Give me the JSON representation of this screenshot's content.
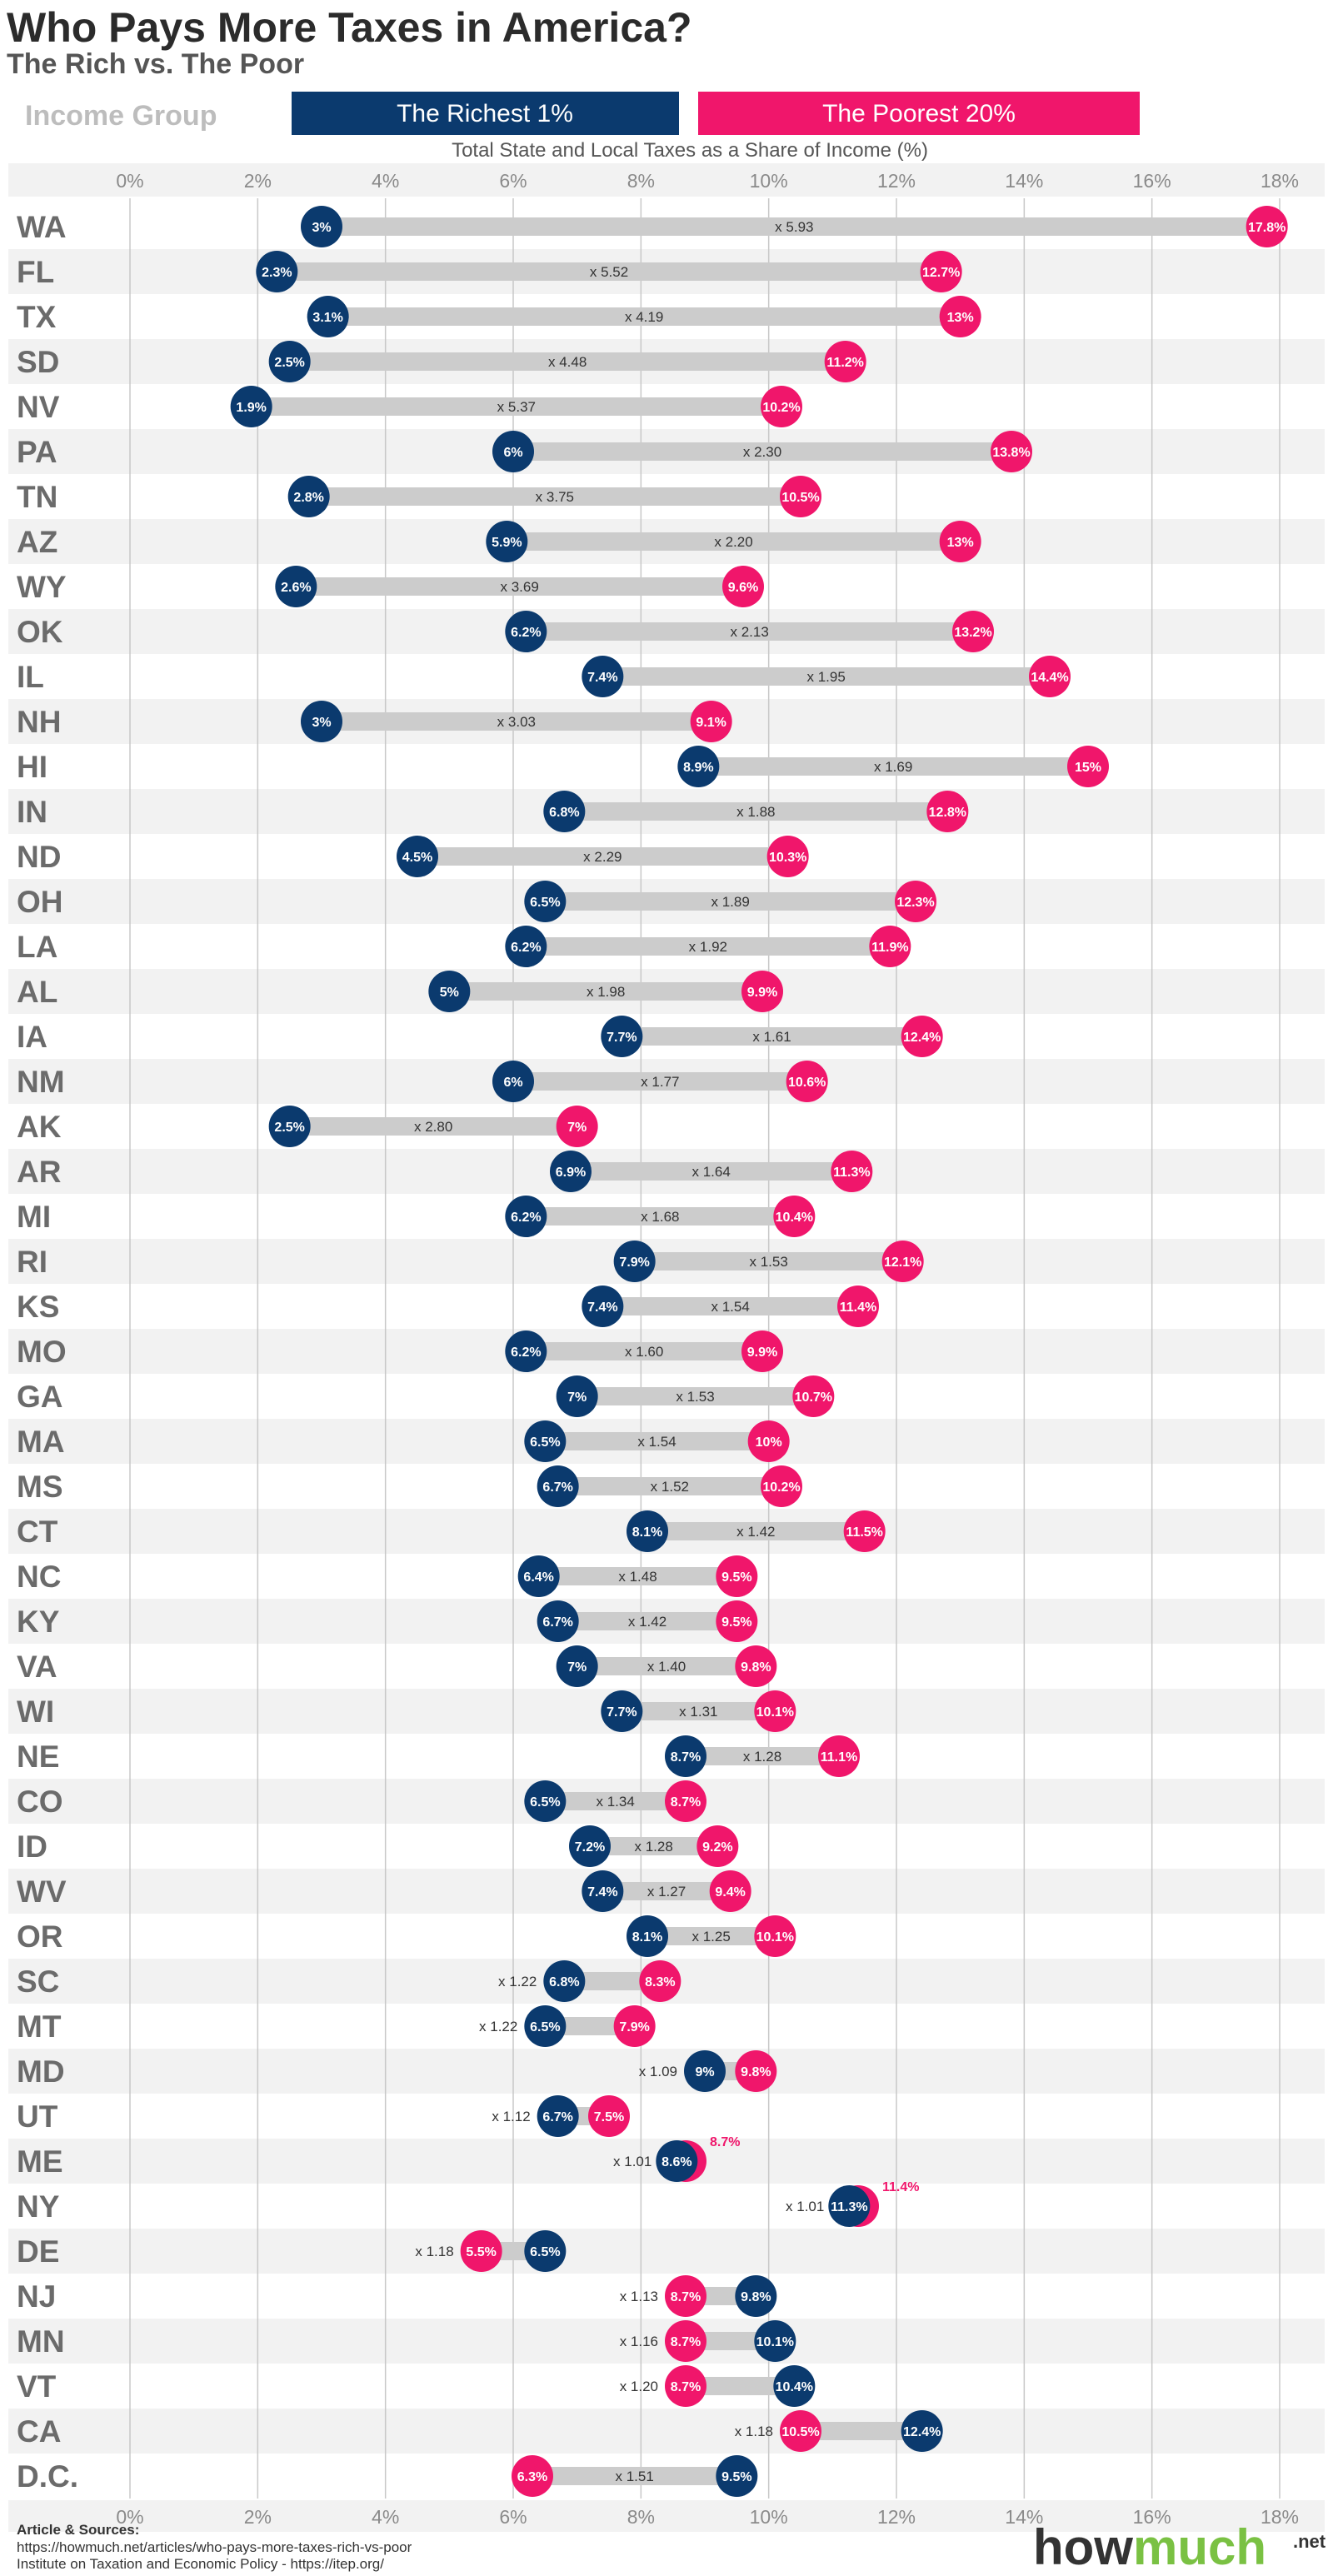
{
  "header": {
    "title": "Who Pays More Taxes in America?",
    "subtitle": "The Rich vs. The Poor",
    "legend_label": "Income Group",
    "legend_rich": "The Richest 1%",
    "legend_poor": "The Poorest 20%",
    "axis_title": "Total State and Local Taxes as a Share of Income (%)"
  },
  "colors": {
    "rich": "#0b3a6e",
    "poor": "#f0166b",
    "bar": "#cccccc",
    "stripe": "#f2f2f2",
    "state_label": "#6b6b6b",
    "grid": "#c8c8c8",
    "brand_how": "#333333",
    "brand_much": "#7ac143"
  },
  "chart_data": {
    "type": "dumbbell",
    "xlim": [
      0,
      18
    ],
    "ticks": [
      "0%",
      "2%",
      "4%",
      "6%",
      "8%",
      "10%",
      "12%",
      "14%",
      "16%",
      "18%"
    ],
    "series": [
      {
        "name": "The Richest 1%",
        "key": "rich"
      },
      {
        "name": "The Poorest 20%",
        "key": "poor"
      }
    ],
    "rows": [
      {
        "state": "WA",
        "rich": 3.0,
        "poor": 17.8,
        "rich_label": "3%",
        "poor_label": "17.8%",
        "ratio": "x 5.93"
      },
      {
        "state": "FL",
        "rich": 2.3,
        "poor": 12.7,
        "rich_label": "2.3%",
        "poor_label": "12.7%",
        "ratio": "x 5.52"
      },
      {
        "state": "TX",
        "rich": 3.1,
        "poor": 13.0,
        "rich_label": "3.1%",
        "poor_label": "13%",
        "ratio": "x 4.19"
      },
      {
        "state": "SD",
        "rich": 2.5,
        "poor": 11.2,
        "rich_label": "2.5%",
        "poor_label": "11.2%",
        "ratio": "x 4.48"
      },
      {
        "state": "NV",
        "rich": 1.9,
        "poor": 10.2,
        "rich_label": "1.9%",
        "poor_label": "10.2%",
        "ratio": "x 5.37"
      },
      {
        "state": "PA",
        "rich": 6.0,
        "poor": 13.8,
        "rich_label": "6%",
        "poor_label": "13.8%",
        "ratio": "x 2.30"
      },
      {
        "state": "TN",
        "rich": 2.8,
        "poor": 10.5,
        "rich_label": "2.8%",
        "poor_label": "10.5%",
        "ratio": "x 3.75"
      },
      {
        "state": "AZ",
        "rich": 5.9,
        "poor": 13.0,
        "rich_label": "5.9%",
        "poor_label": "13%",
        "ratio": "x 2.20"
      },
      {
        "state": "WY",
        "rich": 2.6,
        "poor": 9.6,
        "rich_label": "2.6%",
        "poor_label": "9.6%",
        "ratio": "x 3.69"
      },
      {
        "state": "OK",
        "rich": 6.2,
        "poor": 13.2,
        "rich_label": "6.2%",
        "poor_label": "13.2%",
        "ratio": "x 2.13"
      },
      {
        "state": "IL",
        "rich": 7.4,
        "poor": 14.4,
        "rich_label": "7.4%",
        "poor_label": "14.4%",
        "ratio": "x 1.95"
      },
      {
        "state": "NH",
        "rich": 3.0,
        "poor": 9.1,
        "rich_label": "3%",
        "poor_label": "9.1%",
        "ratio": "x 3.03"
      },
      {
        "state": "HI",
        "rich": 8.9,
        "poor": 15.0,
        "rich_label": "8.9%",
        "poor_label": "15%",
        "ratio": "x 1.69"
      },
      {
        "state": "IN",
        "rich": 6.8,
        "poor": 12.8,
        "rich_label": "6.8%",
        "poor_label": "12.8%",
        "ratio": "x 1.88"
      },
      {
        "state": "ND",
        "rich": 4.5,
        "poor": 10.3,
        "rich_label": "4.5%",
        "poor_label": "10.3%",
        "ratio": "x 2.29"
      },
      {
        "state": "OH",
        "rich": 6.5,
        "poor": 12.3,
        "rich_label": "6.5%",
        "poor_label": "12.3%",
        "ratio": "x 1.89"
      },
      {
        "state": "LA",
        "rich": 6.2,
        "poor": 11.9,
        "rich_label": "6.2%",
        "poor_label": "11.9%",
        "ratio": "x 1.92"
      },
      {
        "state": "AL",
        "rich": 5.0,
        "poor": 9.9,
        "rich_label": "5%",
        "poor_label": "9.9%",
        "ratio": "x 1.98"
      },
      {
        "state": "IA",
        "rich": 7.7,
        "poor": 12.4,
        "rich_label": "7.7%",
        "poor_label": "12.4%",
        "ratio": "x 1.61"
      },
      {
        "state": "NM",
        "rich": 6.0,
        "poor": 10.6,
        "rich_label": "6%",
        "poor_label": "10.6%",
        "ratio": "x 1.77"
      },
      {
        "state": "AK",
        "rich": 2.5,
        "poor": 7.0,
        "rich_label": "2.5%",
        "poor_label": "7%",
        "ratio": "x  2.80"
      },
      {
        "state": "AR",
        "rich": 6.9,
        "poor": 11.3,
        "rich_label": "6.9%",
        "poor_label": "11.3%",
        "ratio": "x 1.64"
      },
      {
        "state": "MI",
        "rich": 6.2,
        "poor": 10.4,
        "rich_label": "6.2%",
        "poor_label": "10.4%",
        "ratio": "x 1.68"
      },
      {
        "state": "RI",
        "rich": 7.9,
        "poor": 12.1,
        "rich_label": "7.9%",
        "poor_label": "12.1%",
        "ratio": "x 1.53"
      },
      {
        "state": "KS",
        "rich": 7.4,
        "poor": 11.4,
        "rich_label": "7.4%",
        "poor_label": "11.4%",
        "ratio": "x 1.54"
      },
      {
        "state": "MO",
        "rich": 6.2,
        "poor": 9.9,
        "rich_label": "6.2%",
        "poor_label": "9.9%",
        "ratio": "x 1.60"
      },
      {
        "state": "GA",
        "rich": 7.0,
        "poor": 10.7,
        "rich_label": "7%",
        "poor_label": "10.7%",
        "ratio": "x 1.53"
      },
      {
        "state": "MA",
        "rich": 6.5,
        "poor": 10.0,
        "rich_label": "6.5%",
        "poor_label": "10%",
        "ratio": "x 1.54"
      },
      {
        "state": "MS",
        "rich": 6.7,
        "poor": 10.2,
        "rich_label": "6.7%",
        "poor_label": "10.2%",
        "ratio": "x 1.52"
      },
      {
        "state": "CT",
        "rich": 8.1,
        "poor": 11.5,
        "rich_label": "8.1%",
        "poor_label": "11.5%",
        "ratio": "x 1.42"
      },
      {
        "state": "NC",
        "rich": 6.4,
        "poor": 9.5,
        "rich_label": "6.4%",
        "poor_label": "9.5%",
        "ratio": "x 1.48"
      },
      {
        "state": "KY",
        "rich": 6.7,
        "poor": 9.5,
        "rich_label": "6.7%",
        "poor_label": "9.5%",
        "ratio": "x 1.42"
      },
      {
        "state": "VA",
        "rich": 7.0,
        "poor": 9.8,
        "rich_label": "7%",
        "poor_label": "9.8%",
        "ratio": "x 1.40"
      },
      {
        "state": "WI",
        "rich": 7.7,
        "poor": 10.1,
        "rich_label": "7.7%",
        "poor_label": "10.1%",
        "ratio": "x 1.31"
      },
      {
        "state": "NE",
        "rich": 8.7,
        "poor": 11.1,
        "rich_label": "8.7%",
        "poor_label": "11.1%",
        "ratio": "x 1.28"
      },
      {
        "state": "CO",
        "rich": 6.5,
        "poor": 8.7,
        "rich_label": "6.5%",
        "poor_label": "8.7%",
        "ratio": "x 1.34"
      },
      {
        "state": "ID",
        "rich": 7.2,
        "poor": 9.2,
        "rich_label": "7.2%",
        "poor_label": "9.2%",
        "ratio": "x 1.28"
      },
      {
        "state": "WV",
        "rich": 7.4,
        "poor": 9.4,
        "rich_label": "7.4%",
        "poor_label": "9.4%",
        "ratio": "x 1.27"
      },
      {
        "state": "OR",
        "rich": 8.1,
        "poor": 10.1,
        "rich_label": "8.1%",
        "poor_label": "10.1%",
        "ratio": "x 1.25"
      },
      {
        "state": "SC",
        "rich": 6.8,
        "poor": 8.3,
        "rich_label": "6.8%",
        "poor_label": "8.3%",
        "ratio": "x 1.22"
      },
      {
        "state": "MT",
        "rich": 6.5,
        "poor": 7.9,
        "rich_label": "6.5%",
        "poor_label": "7.9%",
        "ratio": "x 1.22"
      },
      {
        "state": "MD",
        "rich": 9.0,
        "poor": 9.8,
        "rich_label": "9%",
        "poor_label": "9.8%",
        "ratio": "x 1.09"
      },
      {
        "state": "UT",
        "rich": 6.7,
        "poor": 7.5,
        "rich_label": "6.7%",
        "poor_label": "7.5%",
        "ratio": "x 1.12"
      },
      {
        "state": "ME",
        "rich": 8.6,
        "poor": 8.7,
        "rich_label": "8.6%",
        "poor_label": "8.7%",
        "ratio": "x 1.01"
      },
      {
        "state": "NY",
        "rich": 11.3,
        "poor": 11.4,
        "rich_label": "11.3%",
        "poor_label": "11.4%",
        "ratio": "x  1.01"
      },
      {
        "state": "DE",
        "rich": 6.5,
        "poor": 5.5,
        "rich_label": "6.5%",
        "poor_label": "5.5%",
        "ratio": "x 1.18"
      },
      {
        "state": "NJ",
        "rich": 9.8,
        "poor": 8.7,
        "rich_label": "9.8%",
        "poor_label": "8.7%",
        "ratio": "x 1.13"
      },
      {
        "state": "MN",
        "rich": 10.1,
        "poor": 8.7,
        "rich_label": "10.1%",
        "poor_label": "8.7%",
        "ratio": "x 1.16"
      },
      {
        "state": "VT",
        "rich": 10.4,
        "poor": 8.7,
        "rich_label": "10.4%",
        "poor_label": "8.7%",
        "ratio": "x 1.20"
      },
      {
        "state": "CA",
        "rich": 12.4,
        "poor": 10.5,
        "rich_label": "12.4%",
        "poor_label": "10.5%",
        "ratio": "x 1.18"
      },
      {
        "state": "D.C.",
        "rich": 9.5,
        "poor": 6.3,
        "rich_label": "9.5%",
        "poor_label": "6.3%",
        "ratio": "x 1.51"
      }
    ]
  },
  "footer": {
    "sources_title": "Article & Sources:",
    "source1": "https://howmuch.net/articles/who-pays-more-taxes-rich-vs-poor",
    "source2": "Institute on Taxation and Economic Policy - https://itep.org/",
    "brand_how": "how",
    "brand_much": "much",
    "brand_net": ".net"
  }
}
